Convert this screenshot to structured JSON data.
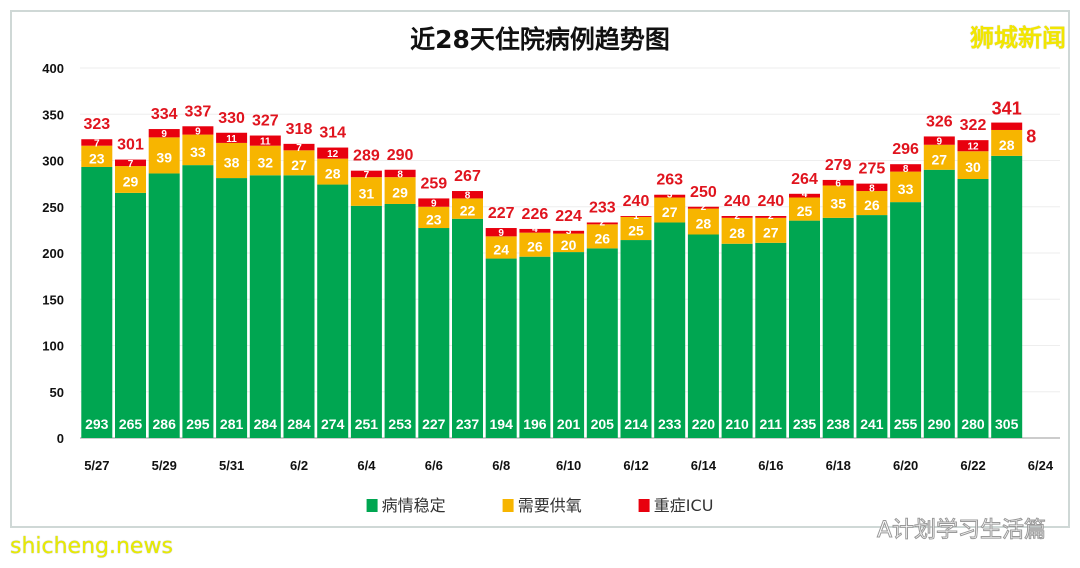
{
  "chart_data": {
    "type": "bar",
    "stacked": true,
    "title": "近28天住院病例趋势图",
    "categories": [
      "5/27",
      "5/28",
      "5/29",
      "5/30",
      "5/31",
      "6/1",
      "6/2",
      "6/3",
      "6/4",
      "6/5",
      "6/6",
      "6/7",
      "6/8",
      "6/9",
      "6/10",
      "6/11",
      "6/12",
      "6/13",
      "6/14",
      "6/15",
      "6/16",
      "6/17",
      "6/18",
      "6/19",
      "6/20",
      "6/21",
      "6/22",
      "6/23"
    ],
    "x_tick_labels": [
      "5/27",
      "5/29",
      "5/31",
      "6/2",
      "6/4",
      "6/6",
      "6/8",
      "6/10",
      "6/12",
      "6/14",
      "6/16",
      "6/18",
      "6/20",
      "6/22",
      "6/24"
    ],
    "series": [
      {
        "name": "病情稳定",
        "color": "#00a651",
        "values": [
          293,
          265,
          286,
          295,
          281,
          284,
          284,
          274,
          251,
          253,
          227,
          237,
          194,
          196,
          201,
          205,
          214,
          233,
          220,
          210,
          211,
          235,
          238,
          241,
          255,
          290,
          280,
          305
        ]
      },
      {
        "name": "需要供氧",
        "color": "#f7b500",
        "values": [
          23,
          29,
          39,
          33,
          38,
          32,
          27,
          28,
          31,
          29,
          23,
          22,
          24,
          26,
          20,
          26,
          25,
          27,
          28,
          28,
          27,
          25,
          35,
          26,
          33,
          27,
          30,
          28
        ]
      },
      {
        "name": "重症ICU",
        "color": "#e8000e",
        "values": [
          7,
          7,
          9,
          9,
          11,
          11,
          7,
          12,
          7,
          8,
          9,
          8,
          9,
          4,
          3,
          2,
          1,
          3,
          2,
          2,
          2,
          4,
          6,
          8,
          8,
          9,
          12,
          8
        ]
      }
    ],
    "totals": [
      323,
      301,
      334,
      337,
      330,
      327,
      318,
      314,
      289,
      290,
      259,
      267,
      227,
      226,
      224,
      233,
      240,
      263,
      250,
      240,
      240,
      264,
      279,
      275,
      296,
      326,
      322,
      341
    ],
    "ylim": [
      0,
      400
    ],
    "y_ticks": [
      "0",
      "50",
      "100",
      "150",
      "200",
      "250",
      "300",
      "350",
      "400"
    ],
    "grid": true,
    "legend_position": "bottom"
  },
  "watermarks": {
    "top_right": "狮城新闻",
    "bottom_left": "shicheng.news",
    "wechat": "A计划学习生活篇"
  }
}
